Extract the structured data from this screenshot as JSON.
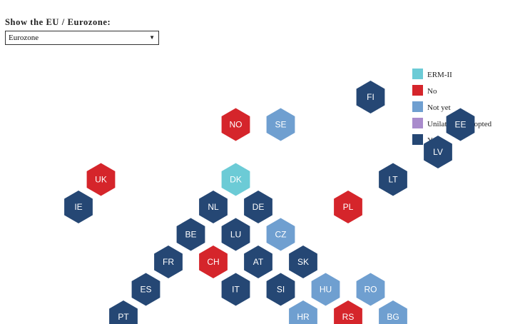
{
  "control": {
    "label": "Show the EU / Eurozone:",
    "selected": "Eurozone"
  },
  "colors": {
    "ERM-II": "#6ccbd6",
    "No": "#d5252b",
    "Not yet": "#6f9fd0",
    "Unilaterally adopted": "#a98bcc",
    "Yes": "#254774"
  },
  "legend": [
    {
      "label": "ERM-II",
      "key": "ERM-II"
    },
    {
      "label": "No",
      "key": "No"
    },
    {
      "label": "Not yet",
      "key": "Not yet"
    },
    {
      "label": "Unilaterally adopted",
      "key": "Unilaterally adopted"
    },
    {
      "label": "Yes",
      "key": "Yes"
    }
  ],
  "countries": [
    {
      "code": "FI",
      "col": 7.5,
      "row": 0,
      "status": "Yes"
    },
    {
      "code": "NO",
      "col": 4.5,
      "row": 1,
      "status": "No"
    },
    {
      "code": "SE",
      "col": 5.5,
      "row": 1,
      "status": "Not yet"
    },
    {
      "code": "EE",
      "col": 9.5,
      "row": 1,
      "status": "Yes"
    },
    {
      "code": "LV",
      "col": 9,
      "row": 2,
      "status": "Yes"
    },
    {
      "code": "UK",
      "col": 1.5,
      "row": 3,
      "status": "No"
    },
    {
      "code": "DK",
      "col": 4.5,
      "row": 3,
      "status": "ERM-II"
    },
    {
      "code": "LT",
      "col": 8,
      "row": 3,
      "status": "Yes"
    },
    {
      "code": "IE",
      "col": 1,
      "row": 4,
      "status": "Yes"
    },
    {
      "code": "NL",
      "col": 4,
      "row": 4,
      "status": "Yes"
    },
    {
      "code": "DE",
      "col": 5,
      "row": 4,
      "status": "Yes"
    },
    {
      "code": "PL",
      "col": 7,
      "row": 4,
      "status": "No"
    },
    {
      "code": "BE",
      "col": 3.5,
      "row": 5,
      "status": "Yes"
    },
    {
      "code": "LU",
      "col": 4.5,
      "row": 5,
      "status": "Yes"
    },
    {
      "code": "CZ",
      "col": 5.5,
      "row": 5,
      "status": "Not yet"
    },
    {
      "code": "FR",
      "col": 3,
      "row": 6,
      "status": "Yes"
    },
    {
      "code": "CH",
      "col": 4,
      "row": 6,
      "status": "No"
    },
    {
      "code": "AT",
      "col": 5,
      "row": 6,
      "status": "Yes"
    },
    {
      "code": "SK",
      "col": 6,
      "row": 6,
      "status": "Yes"
    },
    {
      "code": "ES",
      "col": 2.5,
      "row": 7,
      "status": "Yes"
    },
    {
      "code": "IT",
      "col": 4.5,
      "row": 7,
      "status": "Yes"
    },
    {
      "code": "SI",
      "col": 5.5,
      "row": 7,
      "status": "Yes"
    },
    {
      "code": "HU",
      "col": 6.5,
      "row": 7,
      "status": "Not yet"
    },
    {
      "code": "RO",
      "col": 7.5,
      "row": 7,
      "status": "Not yet"
    },
    {
      "code": "PT",
      "col": 2,
      "row": 8,
      "status": "Yes"
    },
    {
      "code": "HR",
      "col": 6,
      "row": 8,
      "status": "Not yet"
    },
    {
      "code": "RS",
      "col": 7,
      "row": 8,
      "status": "No"
    },
    {
      "code": "BG",
      "col": 8,
      "row": 8,
      "status": "Not yet"
    }
  ]
}
